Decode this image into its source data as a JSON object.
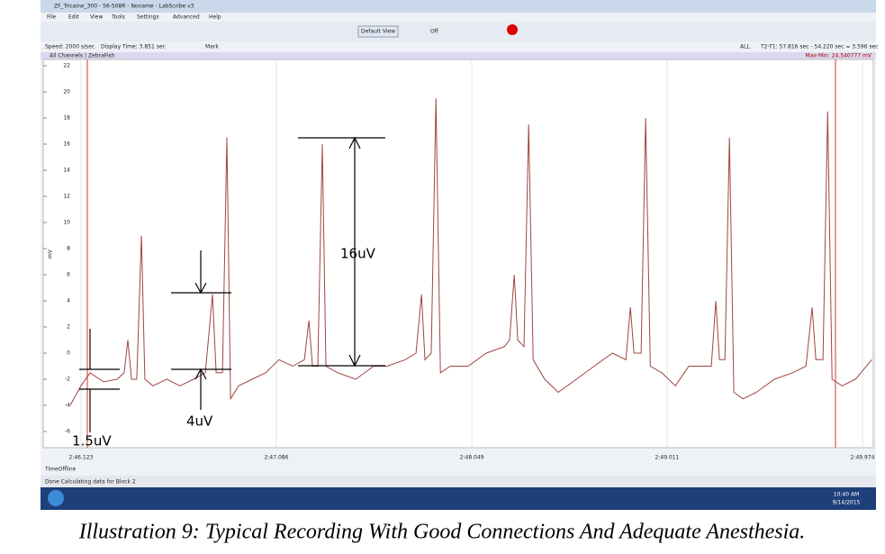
{
  "window": {
    "title": "ZF_Tricaine_300 - 56-508R - Noname - LabScribe v3",
    "menu": [
      "File",
      "Edit",
      "View",
      "Tools",
      "Settings",
      "Advanced",
      "Help"
    ],
    "toolbar": {
      "view_button": "Default View",
      "toggle": "Off"
    }
  },
  "info_bar": {
    "speed": "Speed: 2000 s/sec",
    "display_time": "Display Time: 3.851 sec",
    "mark": "Mark",
    "all": "ALL",
    "cursor_readout": "T2-T1: 57.816 sec - 54.220 sec = 3.596 sec"
  },
  "channel_bar": {
    "name": "All Channels | ZebraFish",
    "max_min": "Max-Min: 24.540777 mV"
  },
  "plot": {
    "y_label": "mV",
    "ylim": [
      -7.24,
      22.48
    ],
    "yticks": [
      -6,
      -4,
      -2,
      0,
      2,
      4,
      6,
      8,
      10,
      12,
      14,
      16,
      18,
      20,
      22
    ],
    "xlim": [
      165.937,
      170.027
    ],
    "xticks": [
      {
        "value": 166.123,
        "label": "2:46.123"
      },
      {
        "value": 167.086,
        "label": "2:47.086"
      },
      {
        "value": 168.049,
        "label": "2:48.049"
      },
      {
        "value": 169.011,
        "label": "2:49.011"
      },
      {
        "value": 169.974,
        "label": "2:49.974"
      }
    ],
    "trace": {
      "color": "#a0453f",
      "x": [
        166.07,
        166.123,
        166.168,
        166.234,
        166.301,
        166.336,
        166.354,
        166.372,
        166.398,
        166.421,
        166.438,
        166.478,
        166.545,
        166.611,
        166.678,
        166.736,
        166.771,
        166.789,
        166.82,
        166.842,
        166.86,
        166.9,
        166.966,
        167.033,
        167.099,
        167.166,
        167.224,
        167.246,
        167.264,
        167.29,
        167.312,
        167.33,
        167.388,
        167.477,
        167.565,
        167.632,
        167.721,
        167.774,
        167.801,
        167.818,
        167.849,
        167.872,
        167.894,
        167.943,
        168.031,
        168.12,
        168.209,
        168.235,
        168.258,
        168.275,
        168.306,
        168.329,
        168.351,
        168.408,
        168.475,
        168.564,
        168.652,
        168.741,
        168.808,
        168.83,
        168.848,
        168.883,
        168.905,
        168.928,
        168.985,
        169.052,
        169.118,
        169.185,
        169.229,
        169.251,
        169.269,
        169.296,
        169.318,
        169.34,
        169.385,
        169.451,
        169.54,
        169.629,
        169.695,
        169.726,
        169.744,
        169.779,
        169.802,
        169.824,
        169.873,
        169.939,
        170.02
      ],
      "values": [
        -4,
        -2.5,
        -1.5,
        -2.2,
        -2,
        -1.5,
        1,
        -2,
        -2,
        9,
        -2,
        -2.5,
        -2,
        -2.5,
        -2,
        -1.5,
        4.5,
        -1.5,
        -1.5,
        16.5,
        -3.5,
        -2.5,
        -2,
        -1.5,
        -0.5,
        -1,
        -0.5,
        2.5,
        -1,
        -1,
        16,
        -1,
        -1.5,
        -2,
        -1,
        -1,
        -0.5,
        0,
        4.5,
        -0.5,
        0,
        19.5,
        -1.5,
        -1,
        -1,
        0,
        0.5,
        1,
        6,
        1,
        0.5,
        17.5,
        -0.5,
        -2,
        -3,
        -2,
        -1,
        0,
        -0.5,
        3.5,
        0,
        0,
        18,
        -1,
        -1.5,
        -2.5,
        -1,
        -1,
        -1,
        4,
        -0.5,
        -0.5,
        16.5,
        -3,
        -3.5,
        -3,
        -2,
        -1.5,
        -1,
        3.5,
        -0.5,
        -0.5,
        18.5,
        -2,
        -2.5,
        -2,
        -0.5
      ]
    },
    "annotations": [
      "16uV",
      "4uV",
      "1.5uV"
    ]
  },
  "bottom": {
    "time_mode": "TimeOffline",
    "status": "Done Calculating data for Block 2"
  },
  "taskbar": {
    "time": "10:40 AM",
    "date": "9/14/2015"
  },
  "caption": "Illustration 9: Typical Recording With Good Connections And Adequate Anesthesia."
}
